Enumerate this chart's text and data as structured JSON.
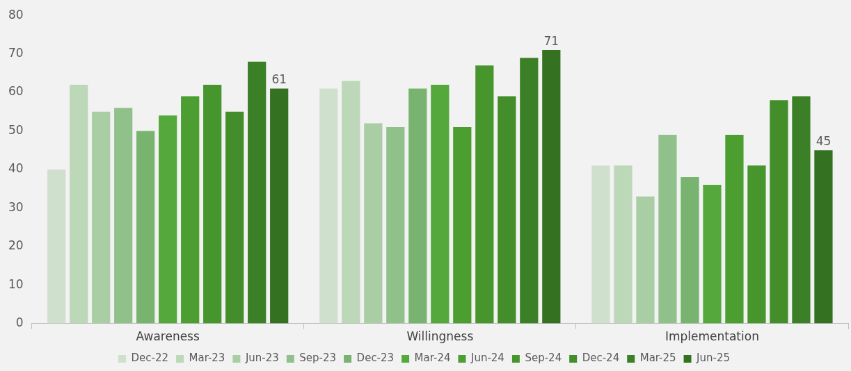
{
  "chart_data": {
    "type": "bar",
    "categories": [
      "Awareness",
      "Willingness",
      "Implementation"
    ],
    "series": [
      {
        "name": "Dec-22",
        "color": "#cfe1cc",
        "values": [
          40,
          61,
          41
        ]
      },
      {
        "name": "Mar-23",
        "color": "#bdd8b8",
        "values": [
          62,
          63,
          41
        ]
      },
      {
        "name": "Jun-23",
        "color": "#a9cea3",
        "values": [
          55,
          52,
          33
        ]
      },
      {
        "name": "Sep-23",
        "color": "#91c18a",
        "values": [
          56,
          51,
          49
        ]
      },
      {
        "name": "Dec-23",
        "color": "#78b46f",
        "values": [
          50,
          61,
          38
        ]
      },
      {
        "name": "Mar-24",
        "color": "#55a93c",
        "values": [
          54,
          62,
          36
        ]
      },
      {
        "name": "Jun-24",
        "color": "#4c9e31",
        "values": [
          59,
          51,
          49
        ]
      },
      {
        "name": "Sep-24",
        "color": "#47962d",
        "values": [
          62,
          67,
          41
        ]
      },
      {
        "name": "Dec-24",
        "color": "#438d2a",
        "values": [
          55,
          59,
          58
        ]
      },
      {
        "name": "Mar-25",
        "color": "#3b8026",
        "values": [
          68,
          69,
          59
        ]
      },
      {
        "name": "Jun-25",
        "color": "#347222",
        "values": [
          61,
          71,
          45
        ],
        "value_labels": [
          "61",
          "71",
          "45"
        ]
      }
    ],
    "ylim": [
      0,
      80
    ],
    "yticks": [
      0,
      10,
      20,
      30,
      40,
      50,
      60,
      70,
      80
    ],
    "grid": false,
    "legend": "bottom"
  }
}
